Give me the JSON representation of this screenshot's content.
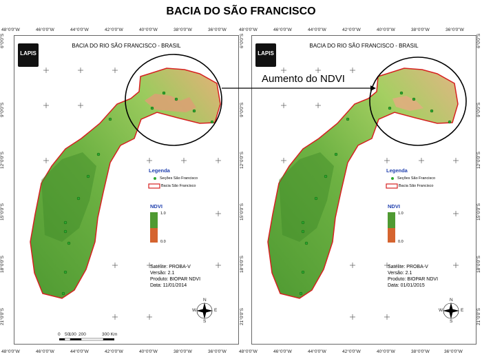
{
  "page": {
    "title": "BACIA DO SÃO FRANCISCO",
    "callout": "Aumento do NDVI"
  },
  "top_coords": [
    "48°0'0\"W",
    "46°0'0\"W",
    "44°0'0\"W",
    "42°0'0\"W",
    "40°0'0\"W",
    "38°0'0\"W",
    "36°0'0\"W"
  ],
  "lat_coords": [
    "6°0'0\"S",
    "9°0'0\"S",
    "12°0'0\"S",
    "15°0'0\"S",
    "18°0'0\"S",
    "21°0'0\"S"
  ],
  "maps": [
    {
      "title": "BACIA DO RIO SÃO FRANCISCO - BRASIL",
      "logo": "LAPIS",
      "legend_title": "Legenda",
      "legend_sections": "Seções São Francisco",
      "legend_basin": "Bacia São Francisco",
      "ndvi_title": "NDVI",
      "ndvi_max": "1.0",
      "ndvi_min": "0.0",
      "info": [
        "Satélite: PROBA-V",
        "Versão: 2.1",
        "Produto: BIOPAR NDVI",
        "Data: 11/01/2014"
      ],
      "scale_labels": [
        "0",
        "50",
        "100",
        "200",
        "300 Km"
      ]
    },
    {
      "title": "BACIA DO RIO SÃO FRANCISCO - BRASIL",
      "logo": "LAPIS",
      "legend_title": "Legenda",
      "legend_sections": "Seções São Francisco",
      "legend_basin": "Bacia São Francisco",
      "ndvi_title": "NDVI",
      "ndvi_max": "1.0",
      "ndvi_min": "0.0",
      "info": [
        "Satélite: PROBA-V",
        "Versão: 2.1",
        "Produto: BIOPAR NDVI",
        "Data: 01/01/2015"
      ],
      "scale_labels": []
    }
  ],
  "compass": {
    "n": "N",
    "s": "S",
    "e": "E",
    "w": "W"
  },
  "colors": {
    "green_dark": "#2f7d22",
    "green": "#5ea83a",
    "green_light": "#9fcd63",
    "orange": "#e0a064",
    "red": "#d9432b",
    "basin_outline": "#d62020",
    "point": "#2fa82f",
    "ndvi_high": "#1f8a2f",
    "ndvi_low": "#d23a25"
  }
}
